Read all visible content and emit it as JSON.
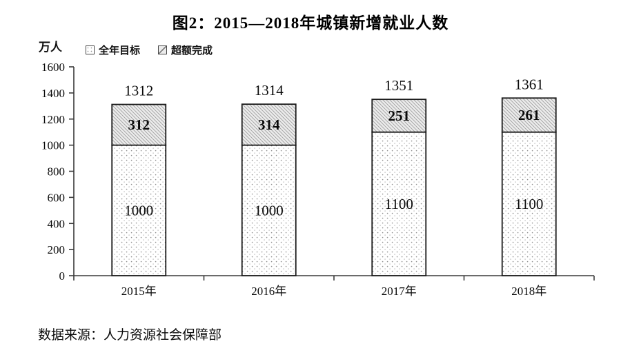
{
  "title": "图2：2015—2018年城镇新增就业人数",
  "legend": [
    {
      "label": "全年目标",
      "pattern": "dots"
    },
    {
      "label": "超额完成",
      "pattern": "hatch"
    }
  ],
  "source": "数据来源：人力资源社会保障部",
  "chart_data": {
    "type": "bar",
    "stacked": true,
    "title": "图2：2015—2018年城镇新增就业人数",
    "ylabel": "万人",
    "xlabel": "",
    "categories": [
      "2015年",
      "2016年",
      "2017年",
      "2018年"
    ],
    "series": [
      {
        "name": "全年目标",
        "pattern": "dots",
        "values": [
          1000,
          1000,
          1100,
          1100
        ]
      },
      {
        "name": "超额完成",
        "pattern": "hatch",
        "values": [
          312,
          314,
          251,
          261
        ]
      }
    ],
    "totals": [
      1312,
      1314,
      1351,
      1361
    ],
    "ylim": [
      0,
      1600
    ],
    "ytick_step": 200,
    "grid": false,
    "legend_position": "top-left",
    "colors": {
      "bar_outline": "#1a1a1a",
      "hatch_fill": "#ececec",
      "hatch_line": "#9f9f9f",
      "dot_color": "#8f8f8f",
      "axis": "#3a3a3a",
      "text": "#0a0a0a"
    }
  }
}
